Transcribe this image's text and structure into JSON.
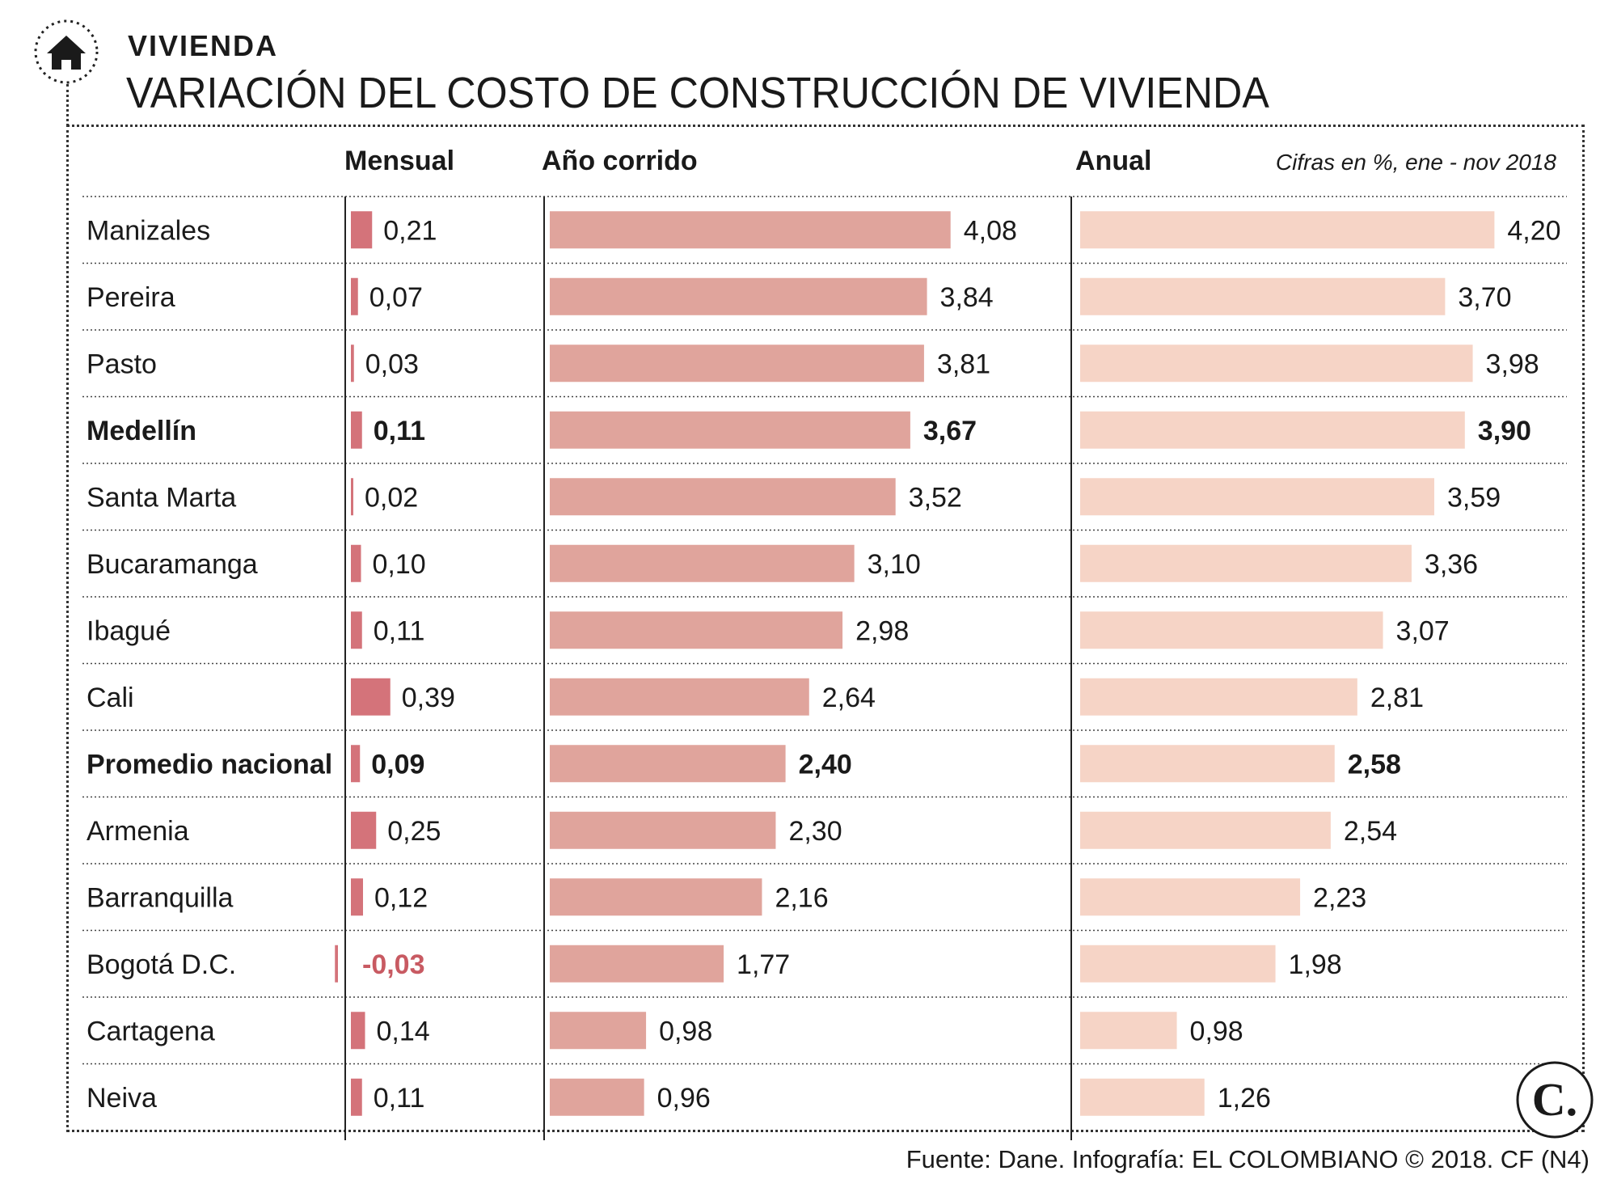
{
  "header": {
    "section": "VIVIENDA",
    "title": "VARIACIÓN DEL COSTO DE CONSTRUCCIÓN DE VIVIENDA"
  },
  "footer": {
    "source": "Fuente: Dane. Infografía: EL COLOMBIANO © 2018. CF (N4)"
  },
  "logo": {
    "text": "C."
  },
  "colors": {
    "monthly_bar": "#d4737a",
    "ytd_bar": "#e0a49c",
    "annual_bar": "#f6d4c6",
    "negative_text": "#c85a62"
  },
  "chart_data": {
    "type": "bar",
    "orientation": "horizontal",
    "title": "VARIACIÓN DEL COSTO DE CONSTRUCCIÓN DE VIVIENDA",
    "note": "Cifras en %, ene - nov 2018",
    "columns": [
      "Mensual",
      "Año corrido",
      "Anual"
    ],
    "categories": [
      "Manizales",
      "Pereira",
      "Pasto",
      "Medellín",
      "Santa Marta",
      "Bucaramanga",
      "Ibagué",
      "Cali",
      "Promedio nacional",
      "Armenia",
      "Barranquilla",
      "Bogotá D.C.",
      "Cartagena",
      "Neiva"
    ],
    "bold_categories": [
      "Medellín",
      "Promedio nacional"
    ],
    "series": [
      {
        "name": "Mensual",
        "values": [
          0.21,
          0.07,
          0.03,
          0.11,
          0.02,
          0.1,
          0.11,
          0.39,
          0.09,
          0.25,
          0.12,
          -0.03,
          0.14,
          0.11
        ],
        "labels": [
          "0,21",
          "0,07",
          "0,03",
          "0,11",
          "0,02",
          "0,10",
          "0,11",
          "0,39",
          "0,09",
          "0,25",
          "0,12",
          "-0,03",
          "0,14",
          "0,11"
        ]
      },
      {
        "name": "Año corrido",
        "values": [
          4.08,
          3.84,
          3.81,
          3.67,
          3.52,
          3.1,
          2.98,
          2.64,
          2.4,
          2.3,
          2.16,
          1.77,
          0.98,
          0.96
        ],
        "labels": [
          "4,08",
          "3,84",
          "3,81",
          "3,67",
          "3,52",
          "3,10",
          "2,98",
          "2,64",
          "2,40",
          "2,30",
          "2,16",
          "1,77",
          "0,98",
          "0,96"
        ]
      },
      {
        "name": "Anual",
        "values": [
          4.2,
          3.7,
          3.98,
          3.9,
          3.59,
          3.36,
          3.07,
          2.81,
          2.58,
          2.54,
          2.23,
          1.98,
          0.98,
          1.26
        ],
        "labels": [
          "4,20",
          "3,70",
          "3,98",
          "3,90",
          "3,59",
          "3,36",
          "3,07",
          "2,81",
          "2,58",
          "2,54",
          "2,23",
          "1,98",
          "0,98",
          "1,26"
        ]
      }
    ],
    "unit": "%"
  }
}
